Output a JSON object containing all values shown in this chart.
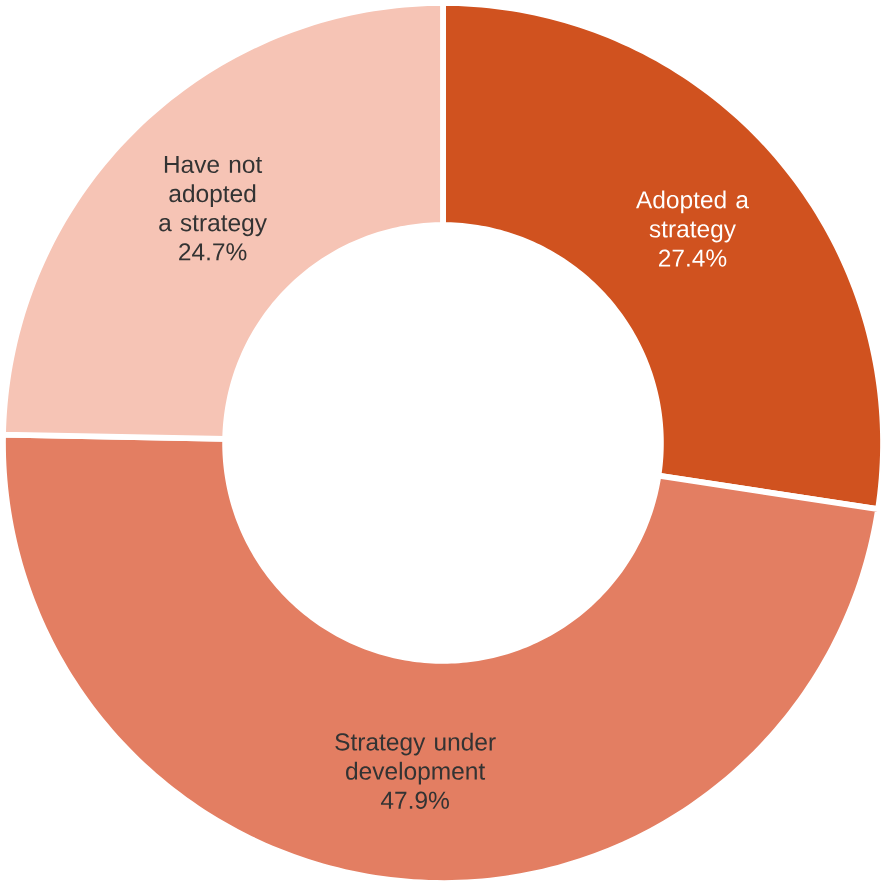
{
  "chart_data": {
    "type": "donut",
    "categories": [
      "Adopted a strategy",
      "Strategy under development",
      "Have not adopted a strategy"
    ],
    "values": [
      27.4,
      47.9,
      24.7
    ],
    "value_labels": [
      "27.4%",
      "47.9%",
      "24.7%"
    ],
    "colors": [
      "#d0521f",
      "#e37e62",
      "#f6c4b5"
    ]
  }
}
